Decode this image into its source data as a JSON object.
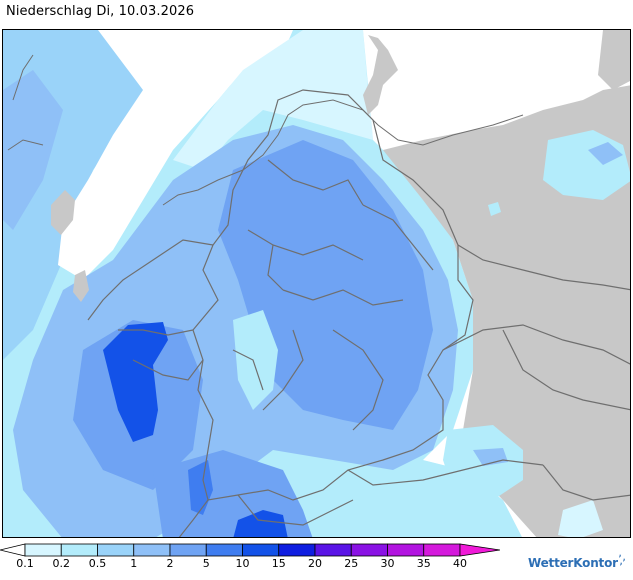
{
  "title": "Niederschlag Di, 10.03.2026",
  "legend": {
    "steps": [
      {
        "label": "0.1",
        "color": "#d7f6ff"
      },
      {
        "label": "0.2",
        "color": "#b3ecfb"
      },
      {
        "label": "0.5",
        "color": "#9ad3f9"
      },
      {
        "label": "1",
        "color": "#8fc0f7"
      },
      {
        "label": "2",
        "color": "#6fa3f3"
      },
      {
        "label": "5",
        "color": "#3f7df0"
      },
      {
        "label": "10",
        "color": "#1352e8"
      },
      {
        "label": "15",
        "color": "#0f1ee0"
      },
      {
        "label": "20",
        "color": "#5a14e6"
      },
      {
        "label": "25",
        "color": "#8a12e4"
      },
      {
        "label": "30",
        "color": "#b214e0"
      },
      {
        "label": "35",
        "color": "#d419dc"
      },
      {
        "label": "40",
        "color": "#ee1cd8"
      }
    ],
    "under_color": "#ffffff",
    "over_color": "#f01ad8"
  },
  "brand": {
    "name": "WetterKontor",
    "color": "#2d6fb5"
  },
  "colors": {
    "sea": "#ffffff",
    "outside_country": "#c8c8c8",
    "border": "#6f6f6f"
  }
}
